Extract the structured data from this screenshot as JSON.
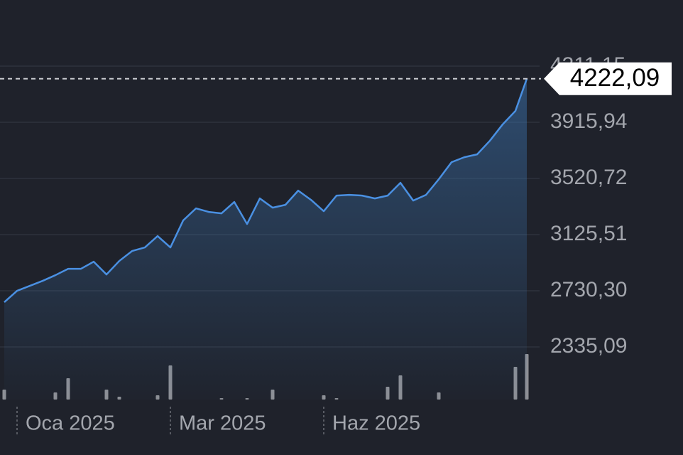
{
  "chart_data": {
    "type": "line",
    "color": "#4a90e2",
    "categories": [
      null,
      "Oca 2025",
      null,
      null,
      null,
      null,
      null,
      null,
      null,
      null,
      null,
      null,
      null,
      "Mar 2025",
      null,
      null,
      null,
      null,
      null,
      null,
      null,
      null,
      null,
      null,
      null,
      "Haz 2025",
      null,
      null,
      null,
      null,
      null,
      null,
      null,
      null,
      null,
      null,
      null,
      null,
      null,
      null,
      null,
      null
    ],
    "values": [
      2650,
      2730,
      2765,
      2800,
      2840,
      2885,
      2885,
      2935,
      2845,
      2940,
      3010,
      3035,
      3115,
      3035,
      3225,
      3310,
      3285,
      3275,
      3355,
      3200,
      3380,
      3315,
      3335,
      3435,
      3370,
      3290,
      3400,
      3405,
      3400,
      3380,
      3400,
      3490,
      3365,
      3405,
      3515,
      3635,
      3670,
      3690,
      3786,
      3901,
      3996,
      4222.09
    ],
    "volume": [
      14,
      0,
      0,
      0,
      10,
      30,
      0,
      0,
      14,
      4,
      0,
      0,
      6,
      48,
      0,
      0,
      0,
      2,
      0,
      2,
      0,
      14,
      0,
      0,
      0,
      6,
      2,
      0,
      0,
      0,
      18,
      34,
      0,
      0,
      10,
      0,
      0,
      0,
      0,
      0,
      46,
      64
    ],
    "volume_color": "#8e9096",
    "ylim": [
      1975,
      4576
    ],
    "yticks": [
      {
        "value": 2335.09,
        "label": "2335,09"
      },
      {
        "value": 2730.3,
        "label": "2730,30"
      },
      {
        "value": 3125.51,
        "label": "3125,51"
      },
      {
        "value": 3520.72,
        "label": "3520,72"
      },
      {
        "value": 3915.94,
        "label": "3915,94"
      },
      {
        "value": 4311.15,
        "label": "4311,15"
      }
    ],
    "grid": true,
    "last_price": {
      "value": 4222.09,
      "label": "4222,09"
    }
  }
}
